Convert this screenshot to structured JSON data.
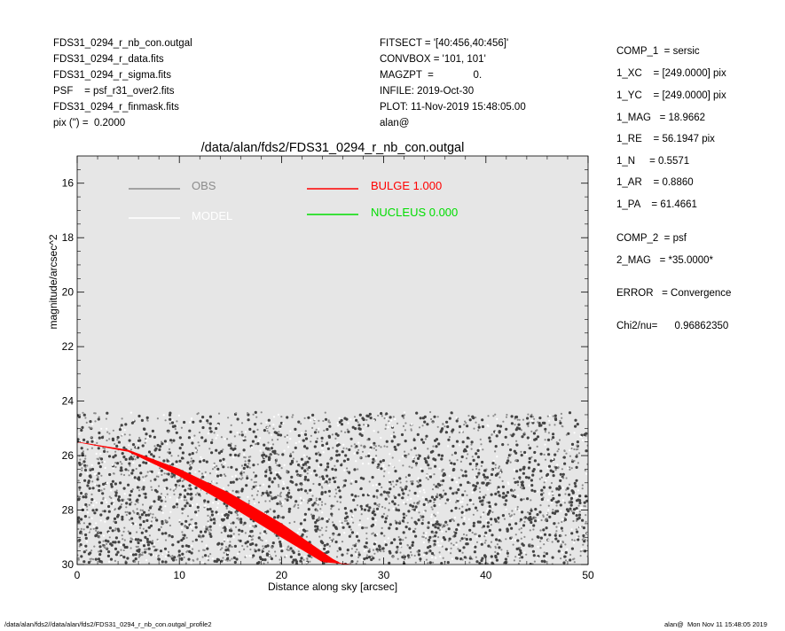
{
  "header_left": [
    "FDS31_0294_r_nb_con.outgal",
    "FDS31_0294_r_data.fits",
    "FDS31_0294_r_sigma.fits",
    "PSF    = psf_r31_over2.fits",
    "FDS31_0294_r_finmask.fits",
    "pix (\") =  0.2000"
  ],
  "header_mid": [
    "FITSECT = '[40:456,40:456]'",
    "CONVBOX = '101, 101'",
    "MAGZPT  =              0.",
    "INFILE: 2019-Oct-30",
    "PLOT: 11-Nov-2019 15:48:05.00",
    "alan@"
  ],
  "params_comp1": [
    "COMP_1  = sersic",
    "1_XC    = [249.0000] pix",
    "1_YC    = [249.0000] pix",
    "1_MAG   = 18.9662",
    "1_RE    = 56.1947 pix",
    "1_N     = 0.5571",
    "1_AR    = 0.8860",
    "1_PA    = 61.4661"
  ],
  "params_comp2": [
    "COMP_2  = psf",
    "2_MAG   = *35.0000*"
  ],
  "error_line": "ERROR   = Convergence",
  "chi2_line": "Chi2/nu=      0.96862350",
  "footer_left": "/data/alan/fds2//data/alan/fds2/FDS31_0294_r_nb_con.outgal_profile2",
  "footer_right": "alan@  Mon Nov 11 15:48:05 2019",
  "chart_data": {
    "type": "scatter",
    "title": "/data/alan/fds2/FDS31_0294_r_nb_con.outgal",
    "xlabel": "Distance along sky [arcsec]",
    "ylabel": "magnitude/arcsec^2",
    "xlim": [
      0,
      50
    ],
    "ylim": [
      30,
      15
    ],
    "y_inverted": true,
    "xticks": [
      0,
      10,
      20,
      30,
      40,
      50
    ],
    "yticks": [
      16,
      18,
      20,
      22,
      24,
      26,
      28,
      30
    ],
    "grid": false,
    "background": "#e6e6e6",
    "legend": [
      {
        "label": "OBS",
        "color": "#8c8c8c"
      },
      {
        "label": "MODEL",
        "color": "#ffffff"
      },
      {
        "label": "BULGE  1.000",
        "color": "#ff0000"
      },
      {
        "label": "NUCLEUS  0.000",
        "color": "#00dd00"
      }
    ],
    "legend_placement": "top",
    "obs_points": {
      "description_count": 3500,
      "x_range": [
        0,
        50
      ],
      "mag_range": [
        24.4,
        30
      ],
      "colors": [
        "#444444",
        "#8c8c8c",
        "#ffffff"
      ]
    },
    "bulge_band": {
      "color": "#ff0000",
      "upper": [
        [
          0,
          25.5
        ],
        [
          5,
          25.8
        ],
        [
          10,
          26.5
        ],
        [
          15,
          27.4
        ],
        [
          20,
          28.5
        ],
        [
          25,
          29.8
        ],
        [
          26,
          30
        ]
      ],
      "lower": [
        [
          0,
          25.5
        ],
        [
          5,
          25.85
        ],
        [
          10,
          26.75
        ],
        [
          15,
          27.85
        ],
        [
          20,
          29.0
        ],
        [
          24,
          29.9
        ],
        [
          27,
          30
        ]
      ]
    }
  }
}
